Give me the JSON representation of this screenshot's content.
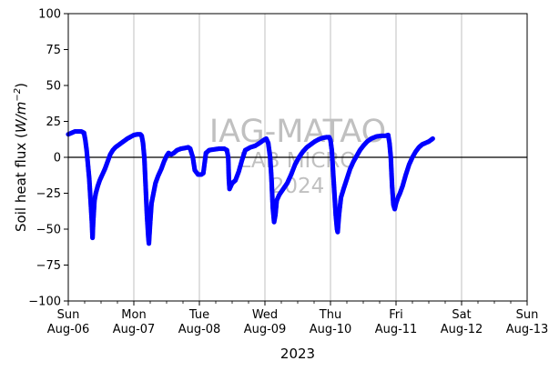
{
  "chart_data": {
    "type": "scatter",
    "ylabel": "Soil heat flux (W/m⁻²)",
    "ylabel_parts": {
      "main": "Soil heat flux (",
      "unit": "W/m",
      "exponent": "−2",
      "close": ")"
    },
    "xlabel": "2023",
    "ylim": [
      -100,
      100
    ],
    "yticks": [
      -100,
      -75,
      -50,
      -25,
      0,
      25,
      50,
      75,
      100
    ],
    "ytick_labels": [
      "−100",
      "−75",
      "−50",
      "−25",
      "0",
      "25",
      "50",
      "75",
      "100"
    ],
    "xlim": [
      "2023-08-06",
      "2023-08-13"
    ],
    "xticks": [
      {
        "day": "Sun",
        "date": "Aug-06"
      },
      {
        "day": "Mon",
        "date": "Aug-07"
      },
      {
        "day": "Tue",
        "date": "Aug-08"
      },
      {
        "day": "Wed",
        "date": "Aug-09"
      },
      {
        "day": "Thu",
        "date": "Aug-10"
      },
      {
        "day": "Fri",
        "date": "Aug-11"
      },
      {
        "day": "Sat",
        "date": "Aug-12"
      },
      {
        "day": "Sun",
        "date": "Aug-13"
      }
    ],
    "grid": "vertical at major ticks",
    "zero_line": true,
    "series": [
      {
        "color": "#0000ff",
        "points": [
          [
            0.0,
            16
          ],
          [
            0.05,
            17
          ],
          [
            0.1,
            18
          ],
          [
            0.15,
            18
          ],
          [
            0.2,
            18
          ],
          [
            0.24,
            17
          ],
          [
            0.26,
            12
          ],
          [
            0.28,
            5
          ],
          [
            0.3,
            -5
          ],
          [
            0.32,
            -15
          ],
          [
            0.34,
            -30
          ],
          [
            0.36,
            -45
          ],
          [
            0.37,
            -56
          ],
          [
            0.38,
            -45
          ],
          [
            0.4,
            -30
          ],
          [
            0.42,
            -25
          ],
          [
            0.45,
            -20
          ],
          [
            0.48,
            -16
          ],
          [
            0.52,
            -12
          ],
          [
            0.56,
            -8
          ],
          [
            0.6,
            -3
          ],
          [
            0.64,
            2
          ],
          [
            0.68,
            5
          ],
          [
            0.72,
            7
          ],
          [
            0.78,
            9
          ],
          [
            0.84,
            11
          ],
          [
            0.9,
            13
          ],
          [
            0.96,
            14.5
          ],
          [
            1.0,
            15.5
          ],
          [
            1.05,
            16
          ],
          [
            1.1,
            16
          ],
          [
            1.12,
            15
          ],
          [
            1.14,
            10
          ],
          [
            1.16,
            0
          ],
          [
            1.18,
            -20
          ],
          [
            1.2,
            -40
          ],
          [
            1.22,
            -55
          ],
          [
            1.23,
            -60
          ],
          [
            1.25,
            -45
          ],
          [
            1.27,
            -32
          ],
          [
            1.3,
            -25
          ],
          [
            1.33,
            -18
          ],
          [
            1.37,
            -13
          ],
          [
            1.42,
            -8
          ],
          [
            1.46,
            -3
          ],
          [
            1.5,
            1
          ],
          [
            1.53,
            3
          ],
          [
            1.57,
            2
          ],
          [
            1.61,
            3
          ],
          [
            1.66,
            5
          ],
          [
            1.72,
            6
          ],
          [
            1.78,
            6.5
          ],
          [
            1.83,
            7
          ],
          [
            1.86,
            6
          ],
          [
            1.9,
            0
          ],
          [
            1.93,
            -9
          ],
          [
            1.98,
            -12
          ],
          [
            2.03,
            -12
          ],
          [
            2.06,
            -11
          ],
          [
            2.1,
            3
          ],
          [
            2.15,
            5
          ],
          [
            2.22,
            5.5
          ],
          [
            2.3,
            6
          ],
          [
            2.38,
            6
          ],
          [
            2.42,
            5
          ],
          [
            2.44,
            0
          ],
          [
            2.45,
            -15
          ],
          [
            2.46,
            -22
          ],
          [
            2.5,
            -18
          ],
          [
            2.55,
            -16
          ],
          [
            2.6,
            -10
          ],
          [
            2.65,
            -2
          ],
          [
            2.7,
            5
          ],
          [
            2.78,
            7
          ],
          [
            2.85,
            8
          ],
          [
            2.92,
            10
          ],
          [
            2.98,
            12
          ],
          [
            3.02,
            13
          ],
          [
            3.05,
            10
          ],
          [
            3.08,
            0
          ],
          [
            3.1,
            -15
          ],
          [
            3.12,
            -35
          ],
          [
            3.14,
            -45
          ],
          [
            3.16,
            -40
          ],
          [
            3.18,
            -30
          ],
          [
            3.22,
            -26
          ],
          [
            3.28,
            -22
          ],
          [
            3.34,
            -18
          ],
          [
            3.4,
            -12
          ],
          [
            3.46,
            -5
          ],
          [
            3.52,
            0
          ],
          [
            3.58,
            4
          ],
          [
            3.64,
            7
          ],
          [
            3.7,
            9
          ],
          [
            3.76,
            11
          ],
          [
            3.82,
            12.5
          ],
          [
            3.88,
            13.5
          ],
          [
            3.94,
            14
          ],
          [
            3.98,
            14
          ],
          [
            4.0,
            12
          ],
          [
            4.02,
            5
          ],
          [
            4.04,
            -10
          ],
          [
            4.06,
            -25
          ],
          [
            4.08,
            -40
          ],
          [
            4.1,
            -50
          ],
          [
            4.11,
            -52
          ],
          [
            4.13,
            -40
          ],
          [
            4.16,
            -28
          ],
          [
            4.2,
            -22
          ],
          [
            4.25,
            -15
          ],
          [
            4.3,
            -8
          ],
          [
            4.35,
            -3
          ],
          [
            4.4,
            1
          ],
          [
            4.45,
            5
          ],
          [
            4.5,
            8
          ],
          [
            4.56,
            11
          ],
          [
            4.62,
            13
          ],
          [
            4.7,
            14.5
          ],
          [
            4.78,
            15
          ],
          [
            4.84,
            15
          ],
          [
            4.88,
            15.5
          ],
          [
            4.9,
            10
          ],
          [
            4.92,
            0
          ],
          [
            4.94,
            -20
          ],
          [
            4.96,
            -33
          ],
          [
            4.98,
            -36
          ],
          [
            5.0,
            -32
          ],
          [
            5.03,
            -28
          ],
          [
            5.06,
            -25
          ],
          [
            5.1,
            -20
          ],
          [
            5.15,
            -12
          ],
          [
            5.2,
            -5
          ],
          [
            5.25,
            0
          ],
          [
            5.3,
            4
          ],
          [
            5.35,
            7
          ],
          [
            5.4,
            9
          ],
          [
            5.45,
            10
          ],
          [
            5.5,
            11
          ],
          [
            5.53,
            12
          ],
          [
            5.56,
            13
          ]
        ]
      }
    ],
    "watermark": {
      "line1": "IAG-MATAO",
      "line2": "LAB MICRO",
      "line3": "2024"
    }
  }
}
